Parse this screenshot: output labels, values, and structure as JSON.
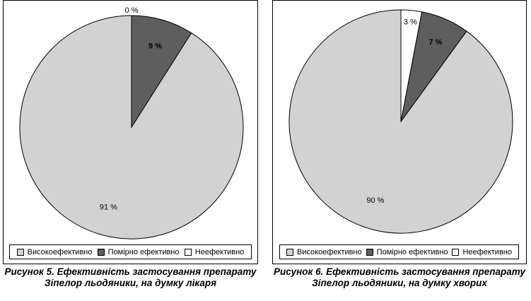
{
  "colors": {
    "Високоефективно": "#d2d2d2",
    "Помірно ефективно": "#5e5e5e",
    "Неефективно": "#ffffff"
  },
  "chart_data": [
    {
      "type": "pie",
      "categories": [
        "Високоефективно",
        "Помірно ефективно",
        "Неефективно"
      ],
      "values": [
        91,
        9,
        0
      ],
      "labels": [
        "91 %",
        "9 %",
        "0 %"
      ],
      "legend": {
        "placement": "bottom",
        "entries": [
          "Високоефективно",
          "Помірно ефективно",
          "Неефективно"
        ]
      },
      "caption_line1": "Рисунок 5. Ефективність застосування препарату",
      "caption_line2": "Зіпелор льодяники, на думку лікаря"
    },
    {
      "type": "pie",
      "categories": [
        "Високоефективно",
        "Помірно ефективно",
        "Неефективно"
      ],
      "values": [
        90,
        7,
        3
      ],
      "labels": [
        "90 %",
        "7 %",
        "3 %"
      ],
      "legend": {
        "placement": "bottom",
        "entries": [
          "Високоефективно",
          "Помірно ефективно",
          "Неефективно"
        ]
      },
      "caption_line1": "Рисунок 6. Ефективність застосування препарату",
      "caption_line2": "Зіпелор льодяники, на думку хворих"
    }
  ]
}
